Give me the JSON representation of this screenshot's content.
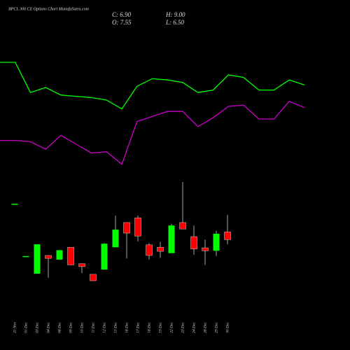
{
  "chart_data": [
    {
      "type": "candlestick",
      "title": "BPCL  300  CE Options  Chart MunafaSutra.com",
      "info": [
        "C: 6.90",
        "H: 9.00",
        "O: 7.55",
        "L: 6.50"
      ],
      "categories": [
        "21 Nov",
        "01 Dec",
        "03 Dec",
        "04 Dec",
        "08 Dec",
        "09 Dec",
        "10 Dec",
        "11 Dec",
        "12 Dec",
        "15 Dec",
        "16 Dec",
        "17 Dec",
        "18 Dec",
        "19 Dec",
        "22 Dec",
        "23 Dec",
        "24 Dec",
        "26 Dec",
        "29 Dec",
        "30 Dec"
      ],
      "open": [
        9.95,
        5.5,
        4.0,
        5.55,
        5.2,
        6.25,
        4.85,
        3.95,
        4.35,
        6.25,
        8.35,
        8.75,
        6.45,
        6.25,
        5.75,
        8.35,
        7.15,
        6.2,
        5.95,
        7.55
      ],
      "high": [
        9.95,
        5.5,
        6.5,
        5.55,
        6.0,
        6.25,
        4.85,
        3.95,
        6.6,
        8.95,
        8.35,
        8.95,
        6.6,
        6.7,
        8.25,
        11.8,
        8.1,
        6.9,
        7.65,
        9.0
      ],
      "low": [
        9.95,
        5.5,
        4.0,
        3.65,
        5.2,
        4.75,
        4.05,
        3.4,
        4.35,
        6.25,
        5.3,
        6.75,
        5.2,
        5.35,
        5.75,
        7.8,
        5.6,
        4.75,
        5.5,
        6.5
      ],
      "close": [
        9.95,
        5.5,
        6.5,
        5.3,
        6.0,
        4.75,
        4.6,
        3.4,
        6.55,
        7.75,
        7.45,
        7.2,
        5.55,
        5.9,
        8.1,
        7.8,
        6.1,
        5.95,
        7.4,
        6.9
      ],
      "up_color": "#00ff00",
      "down_color": "#ff0000",
      "ylim": [
        0,
        14
      ]
    },
    {
      "type": "line",
      "x": [
        0,
        1,
        2,
        3,
        4,
        5,
        6,
        7,
        8,
        9,
        10,
        11,
        12,
        13,
        14,
        15,
        16,
        17,
        18,
        19,
        20
      ],
      "xlim": [
        0,
        20
      ],
      "ylim": [
        0,
        100
      ],
      "series": [
        {
          "color": "#00ff00",
          "values": [
            95,
            95,
            71,
            75,
            69,
            68,
            67,
            65,
            58,
            76,
            82,
            81,
            79,
            71,
            73,
            85,
            83,
            73,
            73,
            81,
            77
          ]
        },
        {
          "color": "#cc00cc",
          "values": [
            33,
            33,
            32,
            26,
            37,
            30,
            23,
            24,
            14,
            48,
            52,
            56,
            56,
            44,
            51,
            60,
            61,
            50,
            50,
            64,
            59
          ]
        }
      ]
    }
  ]
}
